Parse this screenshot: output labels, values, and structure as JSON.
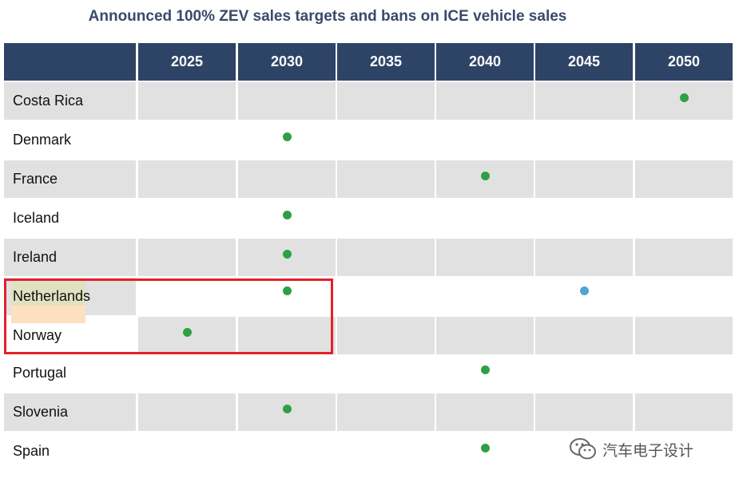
{
  "chart_data": {
    "type": "table",
    "title": "Announced 100% ZEV sales targets and bans on ICE vehicle sales",
    "columns": [
      "2025",
      "2030",
      "2035",
      "2040",
      "2045",
      "2050"
    ],
    "rows": [
      {
        "country": "Costa Rica",
        "marks": [
          {
            "year": "2050",
            "kind": "target"
          }
        ]
      },
      {
        "country": "Denmark",
        "marks": [
          {
            "year": "2030",
            "kind": "target"
          }
        ]
      },
      {
        "country": "France",
        "marks": [
          {
            "year": "2040",
            "kind": "target"
          }
        ]
      },
      {
        "country": "Iceland",
        "marks": [
          {
            "year": "2030",
            "kind": "target"
          }
        ]
      },
      {
        "country": "Ireland",
        "marks": [
          {
            "year": "2030",
            "kind": "target"
          }
        ]
      },
      {
        "country": "Netherlands",
        "marks": [
          {
            "year": "2030",
            "kind": "target"
          },
          {
            "year": "2045",
            "kind": "other"
          }
        ]
      },
      {
        "country": "Norway",
        "marks": [
          {
            "year": "2025",
            "kind": "target"
          }
        ]
      },
      {
        "country": "Portugal",
        "marks": [
          {
            "year": "2040",
            "kind": "target"
          }
        ]
      },
      {
        "country": "Slovenia",
        "marks": [
          {
            "year": "2030",
            "kind": "target"
          }
        ]
      },
      {
        "country": "Spain",
        "marks": [
          {
            "year": "2040",
            "kind": "target"
          }
        ]
      }
    ],
    "highlighted_rows": [
      "Netherlands",
      "Norway"
    ]
  },
  "colors": {
    "header_bg": "#2d4466",
    "row_shaded": "#e1e1e1",
    "row_plain": "#ffffff",
    "dot_target": "#2ea044",
    "dot_other": "#4ea3d8",
    "highlight_border": "#e52029"
  },
  "watermark": {
    "text": "汽车电子设计",
    "icon": "wechat-icon"
  }
}
